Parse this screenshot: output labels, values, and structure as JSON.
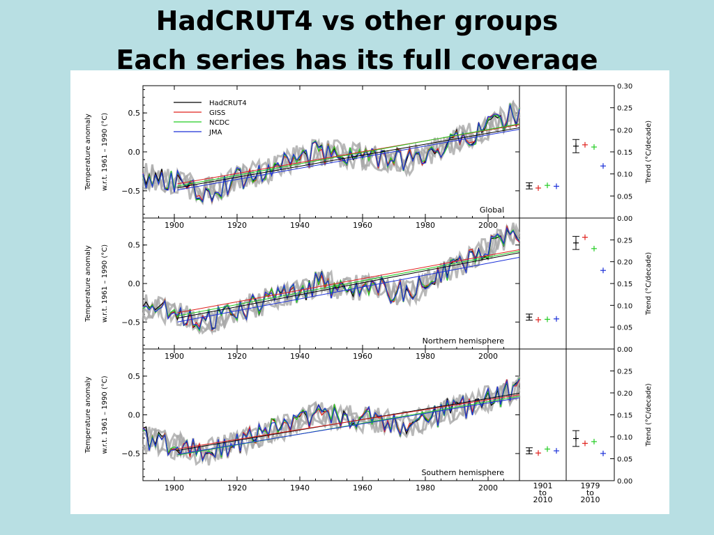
{
  "slide": {
    "title_line_1": "HadCRUT4 vs other groups",
    "title_line_2": "Each series has its full coverage"
  },
  "colors": {
    "HadCRUT4": "#000000",
    "GISS": "#e0201c",
    "NCDC": "#22cc22",
    "JMA": "#1a2fd8",
    "ensemble": "#a8a8a8",
    "background": "#b8dfe3"
  },
  "chart_data": [
    {
      "type": "line",
      "title": "Global",
      "xlabel": "",
      "ylabel": "Temperature anomaly",
      "ylabel2": "w.r.t. 1961 – 1990 (°C)",
      "xlim": [
        1890,
        2010
      ],
      "ylim": [
        -0.85,
        0.85
      ],
      "yticks": [
        -0.5,
        0.0,
        0.5
      ],
      "ytick_labels": [
        "−0.5",
        "0.0",
        "0.5"
      ],
      "xticks": [
        1900,
        1920,
        1940,
        1960,
        1980,
        2000
      ],
      "xtick_labels": [
        "1900",
        "1920",
        "1940",
        "1960",
        "1980",
        "2000"
      ],
      "legend": [
        "HadCRUT4",
        "GISS",
        "NCDC",
        "JMA"
      ],
      "legend_position": "top-left",
      "trend_lines": {
        "HadCRUT4": [
          [
            1901,
            -0.46
          ],
          [
            2010,
            0.31
          ]
        ],
        "GISS": [
          [
            1901,
            -0.41
          ],
          [
            2010,
            0.35
          ]
        ],
        "NCDC": [
          [
            1901,
            -0.44
          ],
          [
            2010,
            0.36
          ]
        ],
        "JMA": [
          [
            1901,
            -0.49
          ],
          [
            2010,
            0.29
          ]
        ]
      },
      "trend_axis": {
        "label": "Trend (°C/decade)",
        "ylim": [
          0.0,
          0.3
        ],
        "yticks": [
          0.0,
          0.05,
          0.1,
          0.15,
          0.2,
          0.25,
          0.3
        ],
        "ytick_labels": [
          "0.00",
          "0.05",
          "0.10",
          "0.15",
          "0.20",
          "0.25",
          "0.30"
        ]
      },
      "trends_1901_2010": {
        "HadCRUT4": 0.073,
        "GISS": 0.068,
        "NCDC": 0.074,
        "JMA": 0.072,
        "HadCRUT4_err": 0.007
      },
      "trends_1979_2010": {
        "HadCRUT4": 0.163,
        "GISS": 0.166,
        "NCDC": 0.161,
        "JMA": 0.118,
        "HadCRUT4_err": 0.015
      }
    },
    {
      "type": "line",
      "title": "Northern hemisphere",
      "xlabel": "",
      "ylabel": "Temperature anomaly",
      "ylabel2": "w.r.t. 1961 – 1990 (°C)",
      "xlim": [
        1890,
        2010
      ],
      "ylim": [
        -0.85,
        0.85
      ],
      "yticks": [
        -0.5,
        0.0,
        0.5
      ],
      "ytick_labels": [
        "−0.5",
        "0.0",
        "0.5"
      ],
      "xticks": [
        1900,
        1920,
        1940,
        1960,
        1980,
        2000
      ],
      "xtick_labels": [
        "1900",
        "1920",
        "1940",
        "1960",
        "1980",
        "2000"
      ],
      "trend_lines": {
        "HadCRUT4": [
          [
            1901,
            -0.45
          ],
          [
            2010,
            0.4
          ]
        ],
        "GISS": [
          [
            1901,
            -0.38
          ],
          [
            2010,
            0.44
          ]
        ],
        "NCDC": [
          [
            1901,
            -0.42
          ],
          [
            2010,
            0.42
          ]
        ],
        "JMA": [
          [
            1901,
            -0.5
          ],
          [
            2010,
            0.34
          ]
        ]
      },
      "trend_axis": {
        "label": "Trend (°C/decade)",
        "ylim": [
          0.0,
          0.3
        ],
        "yticks": [
          0.0,
          0.05,
          0.1,
          0.15,
          0.2,
          0.25
        ],
        "ytick_labels": [
          "0.00",
          "0.05",
          "0.10",
          "0.15",
          "0.20",
          "0.25"
        ]
      },
      "trends_1901_2010": {
        "HadCRUT4": 0.073,
        "GISS": 0.067,
        "NCDC": 0.068,
        "JMA": 0.069,
        "HadCRUT4_err": 0.007
      },
      "trends_1979_2010": {
        "HadCRUT4": 0.243,
        "GISS": 0.256,
        "NCDC": 0.23,
        "JMA": 0.18,
        "HadCRUT4_err": 0.015
      }
    },
    {
      "type": "line",
      "title": "Southern hemisphere",
      "xlabel": "",
      "ylabel": "Temperature anomaly",
      "ylabel2": "w.r.t. 1961 – 1990 (°C)",
      "xlim": [
        1890,
        2010
      ],
      "ylim": [
        -0.85,
        0.85
      ],
      "yticks": [
        -0.5,
        0.0,
        0.5
      ],
      "ytick_labels": [
        "−0.5",
        "0.0",
        "0.5"
      ],
      "xticks": [
        1900,
        1920,
        1940,
        1960,
        1980,
        2000
      ],
      "xtick_labels": [
        "1900",
        "1920",
        "1940",
        "1960",
        "1980",
        "2000"
      ],
      "trend_lines": {
        "HadCRUT4": [
          [
            1901,
            -0.46
          ],
          [
            2010,
            0.28
          ]
        ],
        "GISS": [
          [
            1901,
            -0.44
          ],
          [
            2010,
            0.26
          ]
        ],
        "NCDC": [
          [
            1901,
            -0.52
          ],
          [
            2010,
            0.24
          ]
        ],
        "JMA": [
          [
            1901,
            -0.51
          ],
          [
            2010,
            0.22
          ]
        ]
      },
      "trend_axis": {
        "label": "Trend (°C/decade)",
        "ylim": [
          0.0,
          0.3
        ],
        "yticks": [
          0.0,
          0.05,
          0.1,
          0.15,
          0.2,
          0.25
        ],
        "ytick_labels": [
          "0.00",
          "0.05",
          "0.10",
          "0.15",
          "0.20",
          "0.25"
        ]
      },
      "trends_1901_2010": {
        "HadCRUT4": 0.068,
        "GISS": 0.063,
        "NCDC": 0.072,
        "JMA": 0.068,
        "HadCRUT4_err": 0.007
      },
      "trends_1979_2010": {
        "HadCRUT4": 0.096,
        "GISS": 0.085,
        "NCDC": 0.089,
        "JMA": 0.062,
        "HadCRUT4_err": 0.018
      }
    }
  ],
  "trend_period_labels": {
    "early": [
      "1901",
      "to",
      "2010"
    ],
    "recent": [
      "1979",
      "to",
      "2010"
    ]
  }
}
